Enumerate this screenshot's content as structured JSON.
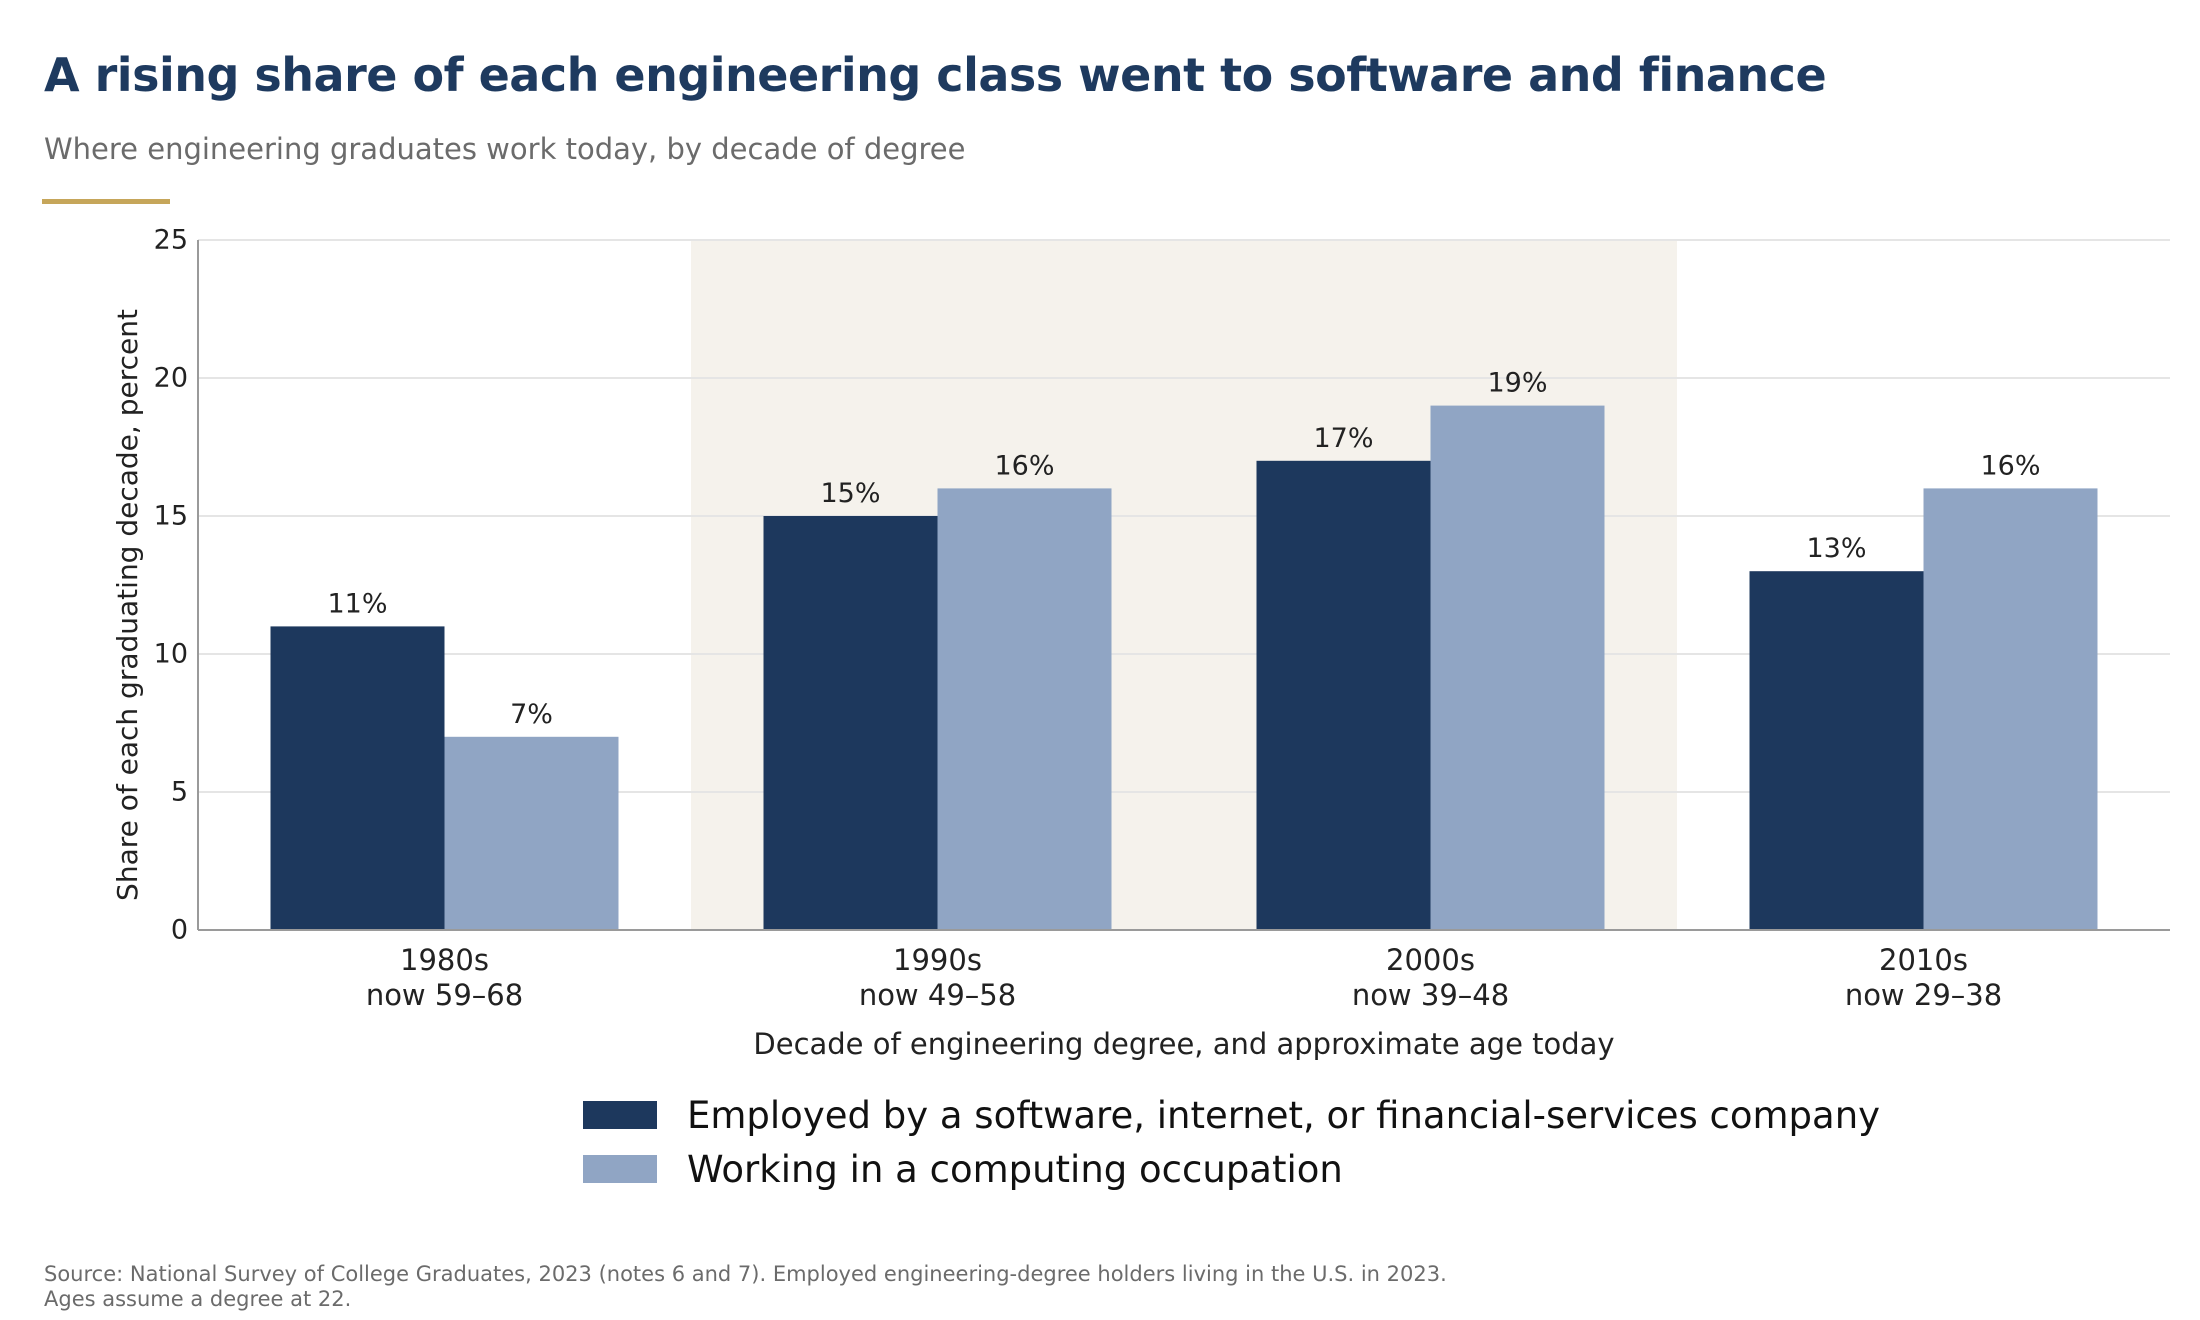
{
  "header": {
    "title": "A rising share of each engineering class went to software and finance",
    "subtitle": "Where engineering graduates work today, by decade of degree"
  },
  "colors": {
    "accent_rule": "#c6a65a",
    "series_dark": "#1d385d",
    "series_light": "#90a5c4",
    "highlight_band": "#f5f2ec",
    "grid": "#e5e5e5",
    "axis": "#9a9a9a"
  },
  "chart_data": {
    "type": "bar",
    "categories": [
      "1980s",
      "1990s",
      "2000s",
      "2010s"
    ],
    "category_sublabels": [
      "now 59–68",
      "now 49–58",
      "now 39–48",
      "now 29–38"
    ],
    "series": [
      {
        "name": "Employed by a software, internet, or financial-services company",
        "values": [
          11,
          15,
          17,
          13
        ],
        "labels": [
          "11%",
          "15%",
          "17%",
          "13%"
        ]
      },
      {
        "name": "Working in a computing occupation",
        "values": [
          7,
          16,
          19,
          16
        ],
        "labels": [
          "7%",
          "16%",
          "19%",
          "16%"
        ]
      }
    ],
    "xlabel": "Decade of engineering degree, and approximate age today",
    "ylabel": "Share of each graduating decade, percent",
    "ylim": [
      0,
      25
    ],
    "yticks": [
      0,
      5,
      10,
      15,
      20,
      25
    ],
    "highlighted_categories": [
      "1990s",
      "2000s"
    ],
    "grid": true,
    "legend_position": "bottom-center"
  },
  "footer": {
    "source_line1": "Source: National Survey of College Graduates, 2023 (notes 6 and 7). Employed engineering-degree holders living in the U.S. in 2023.",
    "source_line2": "Ages assume a degree at 22."
  }
}
